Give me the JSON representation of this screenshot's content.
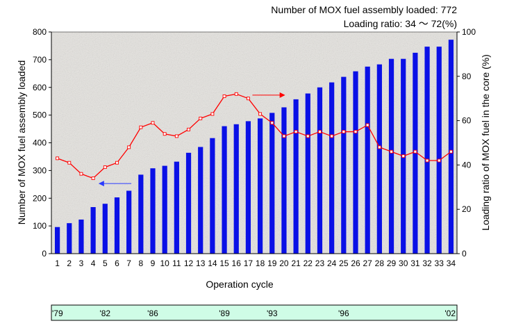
{
  "annotations": {
    "total_loaded": "Number of MOX fuel assembly loaded: 772",
    "loading_ratio": "Loading ratio: 34 〜 72(%)"
  },
  "colors": {
    "bar": "#0a10e6",
    "line": "#ff0000",
    "plot_bg": "#e6e4e0",
    "timeline_bg": "#cffce6",
    "left_arrow": "#2a3bff",
    "right_arrow": "#ff0000"
  },
  "chart_data": {
    "type": "bar",
    "xlabel": "Operation cycle",
    "ylabel": "Number of MOX fuel assembly loaded",
    "y2label": "Loading ratio of MOX fuel in the core (%)",
    "ylim": [
      0,
      800
    ],
    "y2lim": [
      0,
      100
    ],
    "yticks": [
      0,
      100,
      200,
      300,
      400,
      500,
      600,
      700,
      800
    ],
    "y2ticks": [
      0,
      20,
      40,
      60,
      80,
      100
    ],
    "grid": false,
    "categories": [
      "1",
      "2",
      "3",
      "4",
      "5",
      "6",
      "7",
      "8",
      "9",
      "10",
      "11",
      "12",
      "13",
      "14",
      "15",
      "16",
      "17",
      "18",
      "19",
      "20",
      "21",
      "22",
      "23",
      "24",
      "25",
      "26",
      "27",
      "28",
      "29",
      "30",
      "31",
      "32",
      "33",
      "34"
    ],
    "series": [
      {
        "kind": "bar",
        "axis": "left",
        "values": [
          96,
          110,
          123,
          168,
          180,
          203,
          227,
          285,
          308,
          317,
          332,
          364,
          385,
          417,
          460,
          467,
          478,
          488,
          508,
          528,
          557,
          578,
          600,
          618,
          638,
          658,
          675,
          683,
          703,
          703,
          725,
          747,
          747,
          772
        ]
      },
      {
        "kind": "line",
        "axis": "right",
        "values": [
          43,
          41,
          36,
          34,
          39,
          41,
          48,
          57,
          59,
          54,
          53,
          56,
          61,
          63,
          71,
          72,
          70,
          63,
          59,
          53,
          55,
          53,
          55,
          53,
          55,
          55,
          58,
          48,
          46,
          44,
          46,
          42,
          42,
          46
        ]
      }
    ],
    "timeline": {
      "labels": [
        "'79",
        "'82",
        "'86",
        "'89",
        "'93",
        "'96",
        "'02"
      ],
      "cycle_positions": [
        1,
        5,
        9,
        15,
        19,
        25,
        34
      ]
    }
  }
}
